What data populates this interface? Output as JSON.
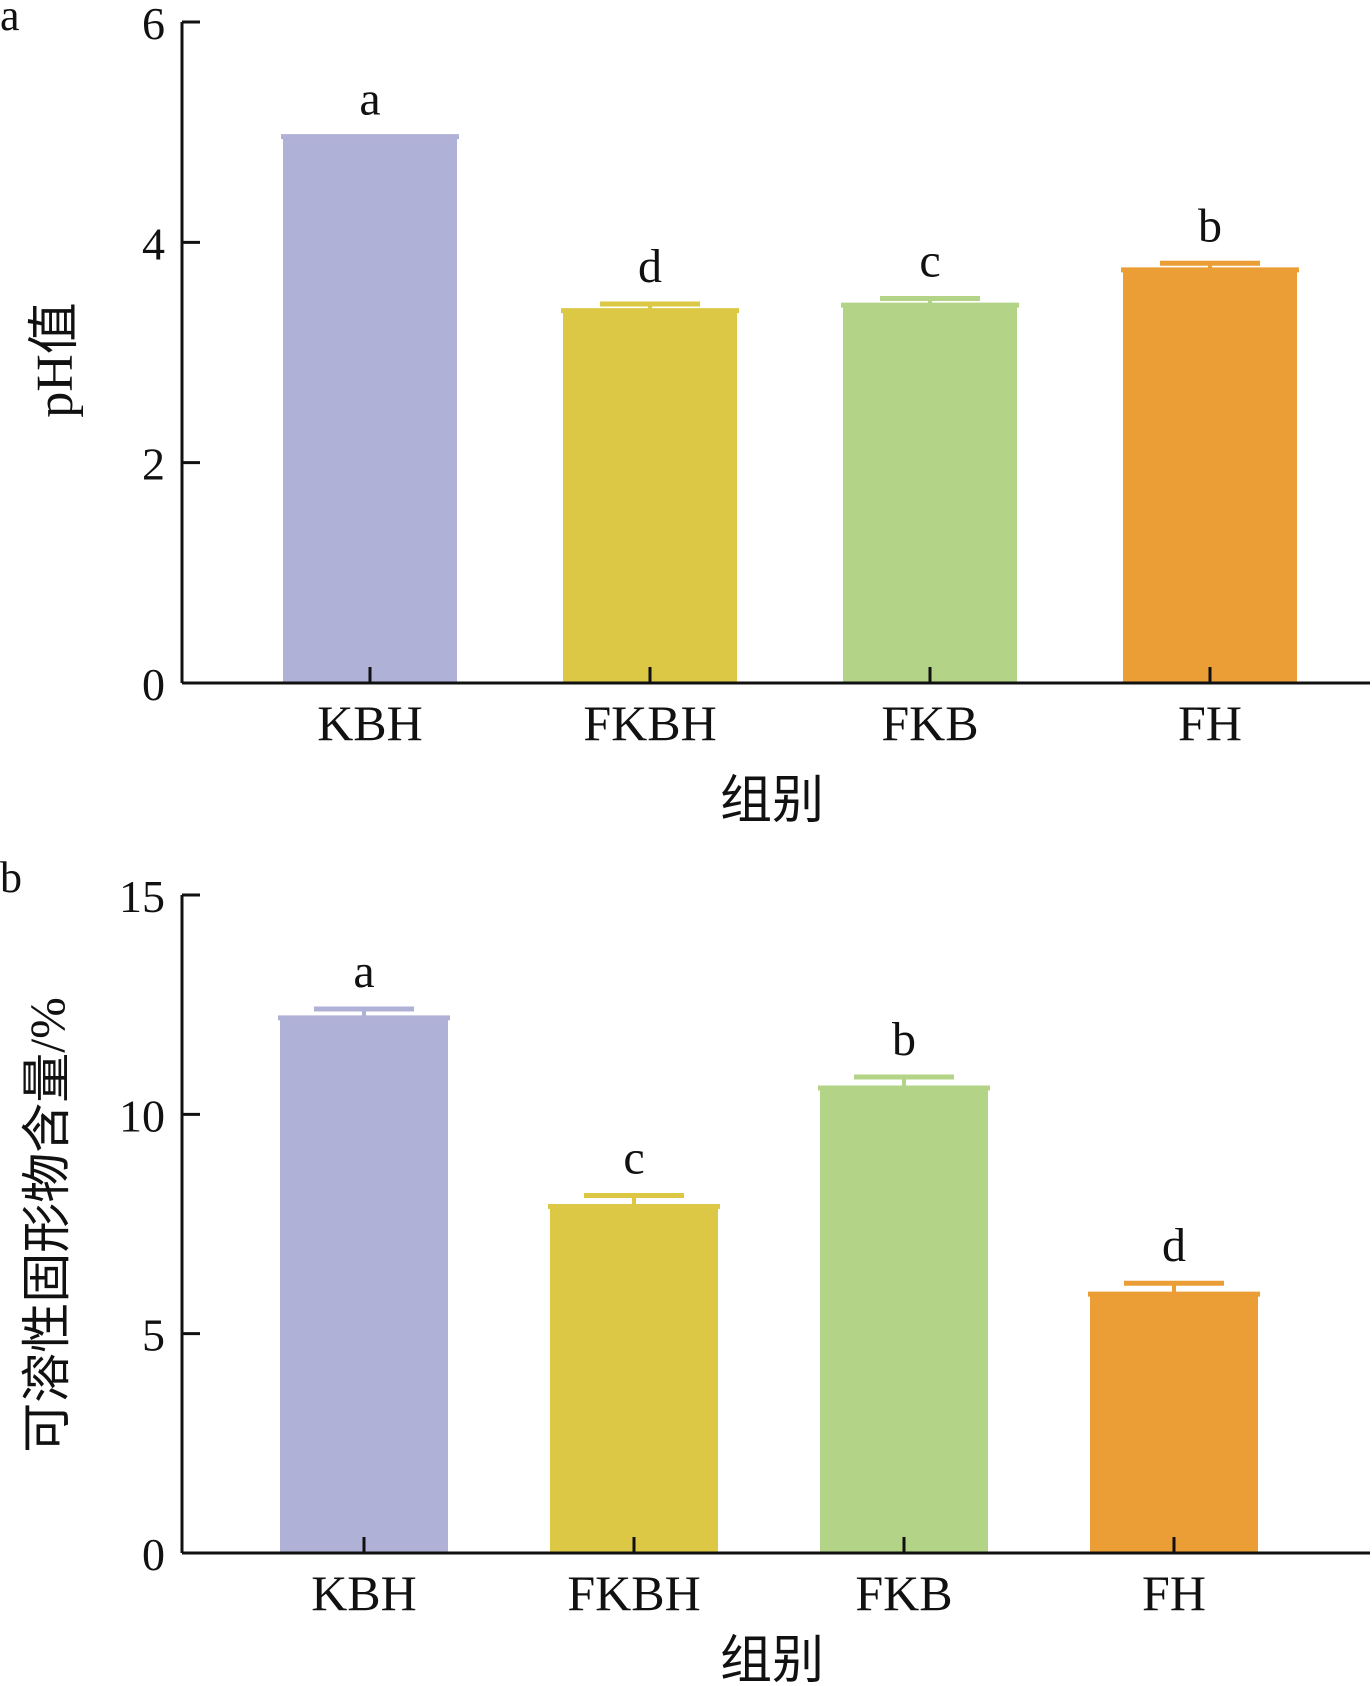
{
  "chart_data": [
    {
      "type": "bar",
      "panel_label": "a",
      "categories": [
        "KBH",
        "FKBH",
        "FKB",
        "FH"
      ],
      "values": [
        4.96,
        3.38,
        3.43,
        3.75
      ],
      "errors": [
        0.0,
        0.06,
        0.06,
        0.06
      ],
      "significance_letters": [
        "a",
        "d",
        "c",
        "b"
      ],
      "colors": [
        "#b0b1d6",
        "#dcc845",
        "#b3d486",
        "#eb9e35"
      ],
      "xlabel": "组别",
      "ylabel": "pH值",
      "ylim": [
        0,
        6
      ],
      "yticks": [
        "0",
        "2",
        "4",
        "6"
      ],
      "grid": false,
      "legend": "none"
    },
    {
      "type": "bar",
      "panel_label": "b",
      "categories": [
        "KBH",
        "FKBH",
        "FKB",
        "FH"
      ],
      "values": [
        12.2,
        7.9,
        10.6,
        5.9
      ],
      "errors": [
        0.2,
        0.25,
        0.25,
        0.25
      ],
      "significance_letters": [
        "a",
        "c",
        "b",
        "d"
      ],
      "colors": [
        "#b0b1d6",
        "#dcc845",
        "#b3d486",
        "#eb9e35"
      ],
      "xlabel": "组别",
      "ylabel": "可溶性固形物含量/%",
      "ylim": [
        0,
        15
      ],
      "yticks": [
        "0",
        "5",
        "10",
        "15"
      ],
      "grid": false,
      "legend": "none"
    }
  ]
}
